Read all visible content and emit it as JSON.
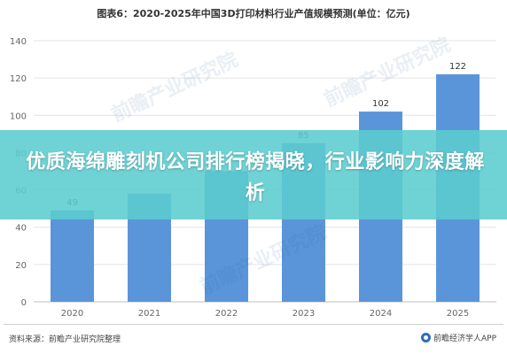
{
  "chart_data": {
    "type": "bar",
    "title": "图表6：2020-2025年中国3D打印材料行业产值规模预测(单位：亿元)",
    "categories": [
      "2020",
      "2021",
      "2022",
      "2023",
      "2024",
      "2025"
    ],
    "values": [
      49,
      58,
      70,
      85,
      102,
      122
    ],
    "value_labels": [
      "49",
      "",
      "",
      "85",
      "102",
      "122"
    ],
    "ylim": [
      0,
      140
    ],
    "yticks": [
      0,
      20,
      40,
      60,
      80,
      100,
      120,
      140
    ],
    "grid": true,
    "bar_color": "#5b95d9"
  },
  "overlay": {
    "headline": "优质海绵雕刻机公司排行榜揭晓，行业影响力深度解析",
    "banner_color": "#5bccce"
  },
  "watermark": {
    "text": "前瞻产业研究院"
  },
  "footer": {
    "source": "资料来源：前瞻产业研究院整理",
    "brand": "前瞻经济学人APP"
  }
}
